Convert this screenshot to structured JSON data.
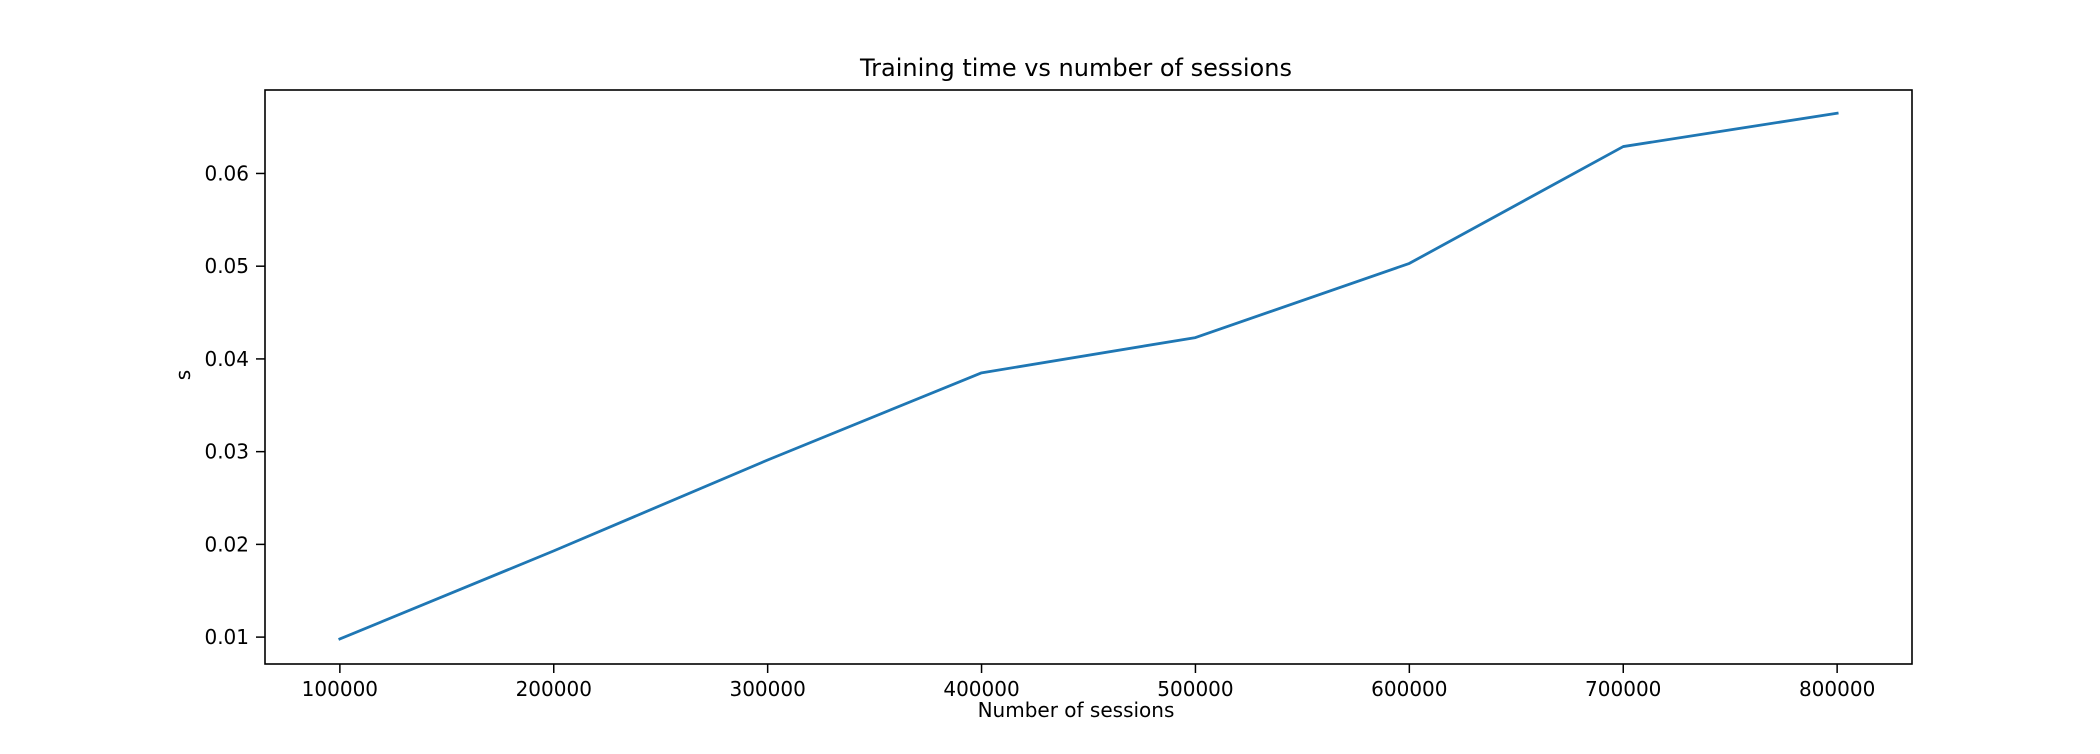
{
  "chart_data": {
    "type": "line",
    "title": "Training time vs number of sessions",
    "xlabel": "Number of sessions",
    "ylabel": "s",
    "x": [
      100000,
      200000,
      300000,
      400000,
      500000,
      600000,
      700000,
      800000
    ],
    "series": [
      {
        "values": [
          0.0098,
          0.0193,
          0.0291,
          0.0385,
          0.0423,
          0.0503,
          0.0629,
          0.0665
        ],
        "color": "#1f77b4"
      }
    ],
    "xlim": [
      65000,
      835000
    ],
    "ylim": [
      0.0071,
      0.069
    ],
    "xticks": [
      100000,
      200000,
      300000,
      400000,
      500000,
      600000,
      700000,
      800000
    ],
    "xtick_labels": [
      "100000",
      "200000",
      "300000",
      "400000",
      "500000",
      "600000",
      "700000",
      "800000"
    ],
    "yticks": [
      0.01,
      0.02,
      0.03,
      0.04,
      0.05,
      0.06
    ],
    "ytick_labels": [
      "0.01",
      "0.02",
      "0.03",
      "0.04",
      "0.05",
      "0.06"
    ],
    "grid": false,
    "legend": "none"
  }
}
